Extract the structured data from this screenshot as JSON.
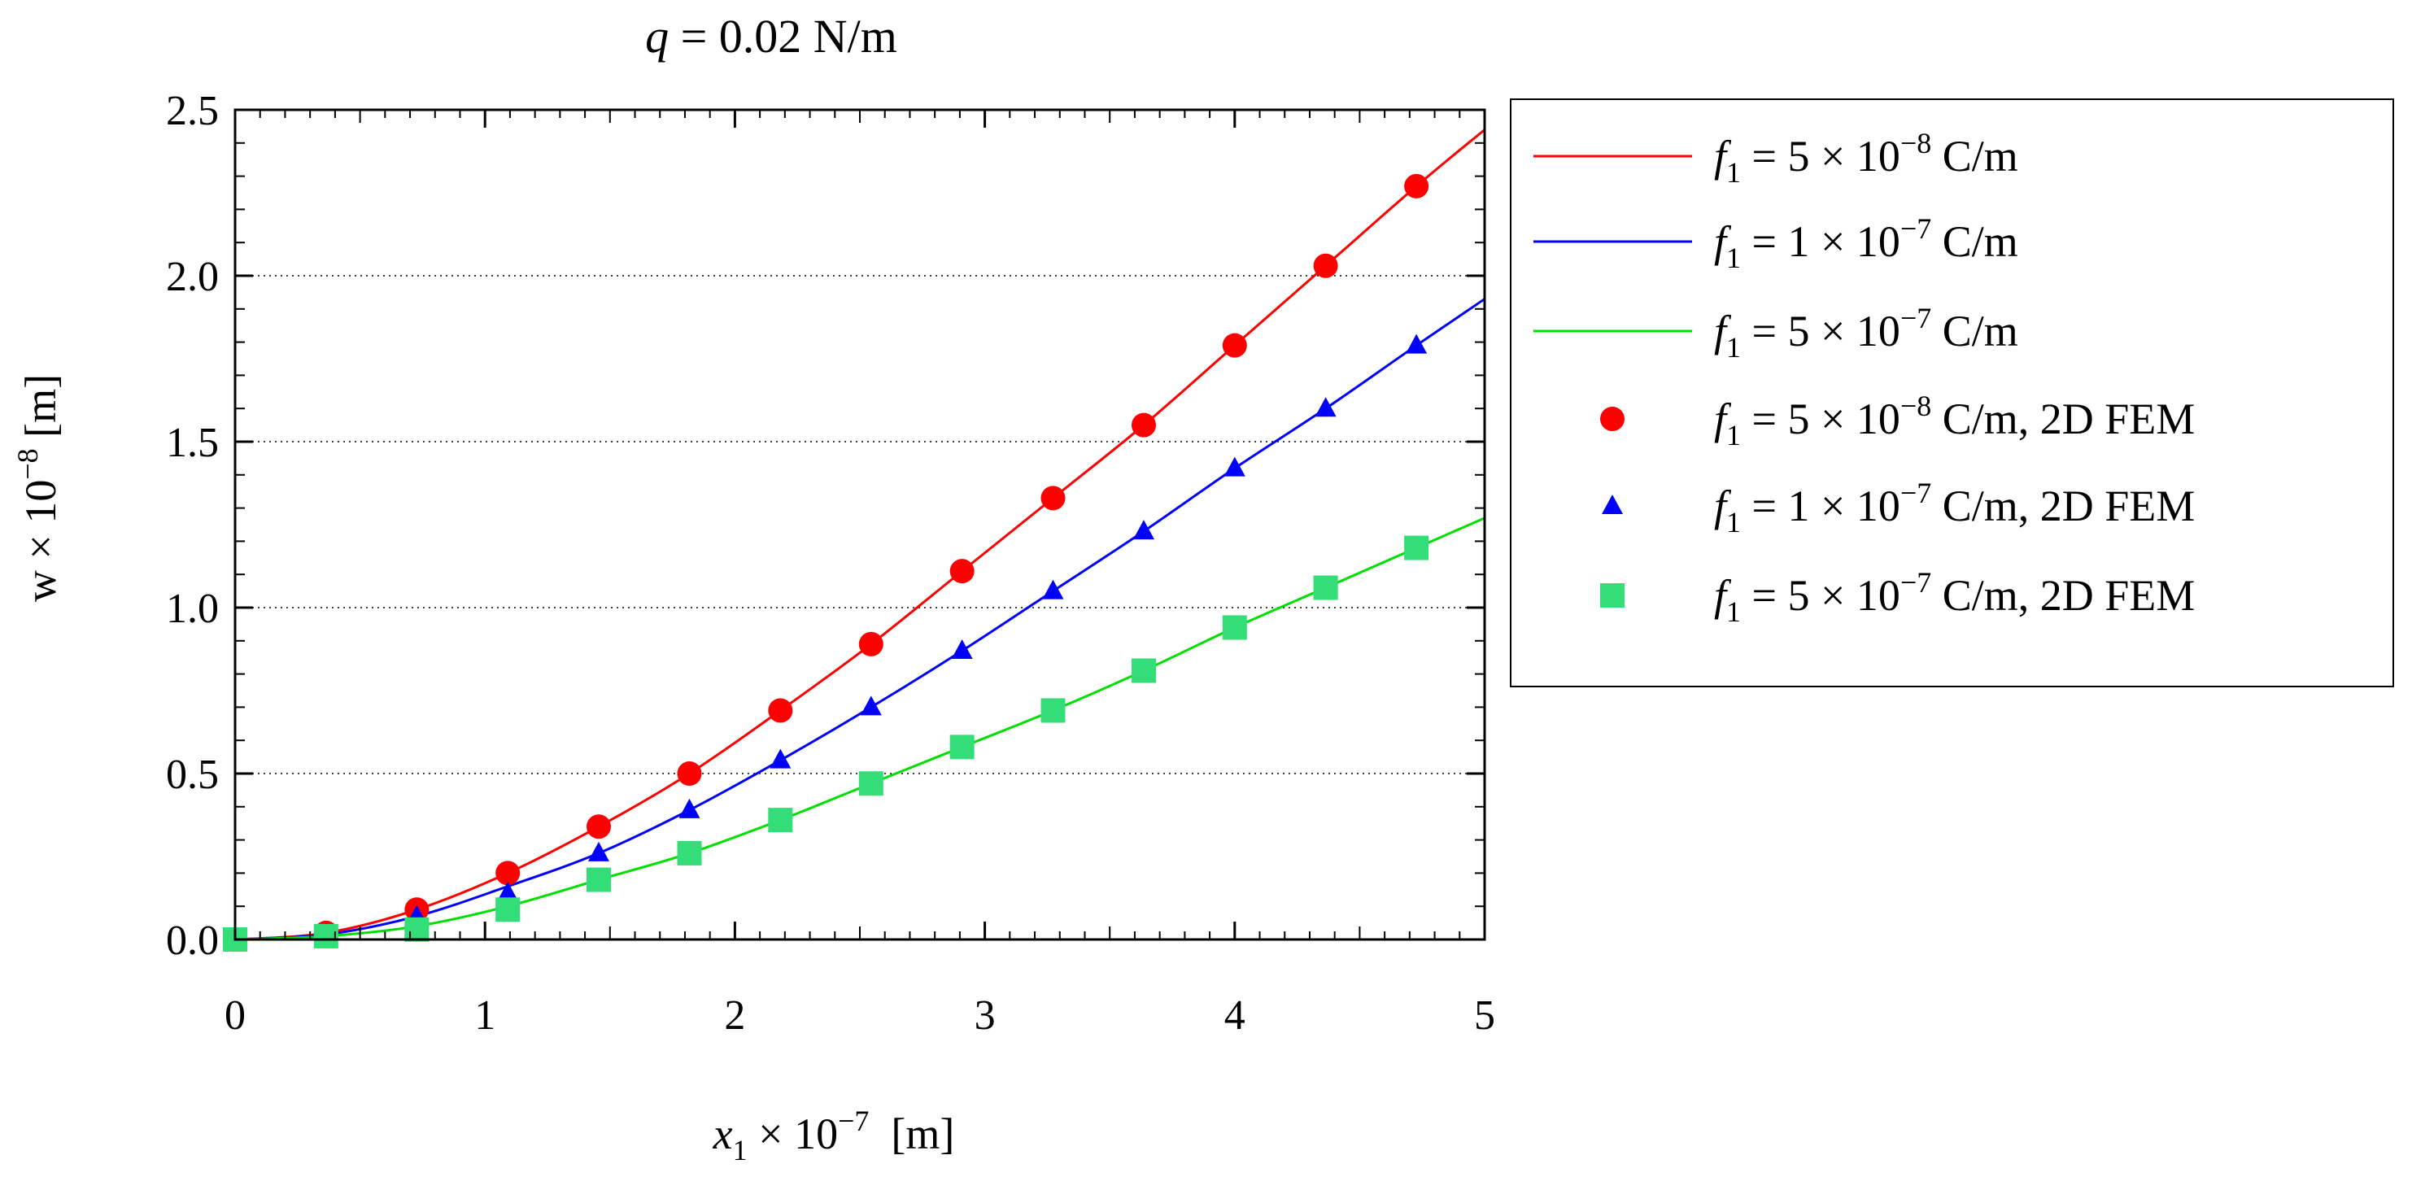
{
  "chart_data": {
    "type": "line",
    "title": {
      "var": "q",
      "rest": " = 0.02 N/m"
    },
    "xlabel": {
      "var": "x",
      "sub": "1",
      "mid": " × 10",
      "exp": "−7",
      "unit": "  [m]"
    },
    "ylabel": {
      "base": "w × 10",
      "exp": "−8",
      "unit": " [m]"
    },
    "xlim": [
      0,
      5
    ],
    "ylim": [
      0,
      2.5
    ],
    "x_ticks": [
      0,
      1,
      2,
      3,
      4,
      5
    ],
    "x_tick_labels": [
      "0",
      "1",
      "2",
      "3",
      "4",
      "5"
    ],
    "y_ticks": [
      0,
      0.5,
      1.0,
      1.5,
      2.0,
      2.5
    ],
    "y_tick_labels": [
      "0.0",
      "0.5",
      "1.0",
      "1.5",
      "2.0",
      "2.5"
    ],
    "grid": "horizontal dotted at y ticks",
    "legend_position": "outside-right",
    "x": [
      0,
      0.364,
      0.727,
      1.091,
      1.455,
      1.818,
      2.182,
      2.545,
      2.909,
      3.273,
      3.636,
      4.0,
      4.364,
      4.727
    ],
    "series": [
      {
        "name": "f1 = 5 × 10^−8 C/m",
        "kind": "line",
        "color": "#ff0000",
        "values": [
          0,
          0.02,
          0.09,
          0.2,
          0.34,
          0.5,
          0.69,
          0.89,
          1.11,
          1.33,
          1.55,
          1.79,
          2.03,
          2.27
        ],
        "end_value": 2.44,
        "legend": {
          "var": "f",
          "sub": "1",
          "mid": " = 5 × 10",
          "exp": "−8",
          "unit": " C/m"
        }
      },
      {
        "name": "f1 = 1 × 10^−7 C/m",
        "kind": "line",
        "color": "#0000ff",
        "values": [
          0,
          0.015,
          0.07,
          0.16,
          0.26,
          0.39,
          0.54,
          0.7,
          0.87,
          1.05,
          1.23,
          1.42,
          1.6,
          1.79
        ],
        "end_value": 1.93,
        "legend": {
          "var": "f",
          "sub": "1",
          "mid": " = 1 × 10",
          "exp": "−7",
          "unit": " C/m"
        }
      },
      {
        "name": "f1 = 5 × 10^−7 C/m",
        "kind": "line",
        "color": "#00e000",
        "values": [
          0,
          0.01,
          0.04,
          0.1,
          0.18,
          0.26,
          0.36,
          0.47,
          0.58,
          0.69,
          0.81,
          0.94,
          1.06,
          1.18
        ],
        "end_value": 1.27,
        "legend": {
          "var": "f",
          "sub": "1",
          "mid": " = 5 × 10",
          "exp": "−7",
          "unit": " C/m"
        }
      },
      {
        "name": "f1 = 5 × 10^−8 C/m, 2D FEM",
        "kind": "circle",
        "color": "#ff0000",
        "values": [
          0,
          0.02,
          0.09,
          0.2,
          0.34,
          0.5,
          0.69,
          0.89,
          1.11,
          1.33,
          1.55,
          1.79,
          2.03,
          2.27
        ],
        "legend": {
          "var": "f",
          "sub": "1",
          "mid": " = 5 × 10",
          "exp": "−8",
          "unit": " C/m, 2D FEM"
        }
      },
      {
        "name": "f1 = 1 × 10^−7 C/m, 2D FEM",
        "kind": "triangle",
        "color": "#0000ff",
        "values": [
          0,
          0.015,
          0.07,
          0.14,
          0.26,
          0.39,
          0.54,
          0.7,
          0.87,
          1.05,
          1.23,
          1.42,
          1.6,
          1.79
        ],
        "legend": {
          "var": "f",
          "sub": "1",
          "mid": " = 1 × 10",
          "exp": "−7",
          "unit": " C/m, 2D FEM"
        }
      },
      {
        "name": "f1 = 5 × 10^−7 C/m, 2D FEM",
        "kind": "square",
        "color": "#33dd77",
        "values": [
          0,
          0.01,
          0.03,
          0.09,
          0.18,
          0.26,
          0.36,
          0.47,
          0.58,
          0.69,
          0.81,
          0.94,
          1.06,
          1.18
        ],
        "legend": {
          "var": "f",
          "sub": "1",
          "mid": " = 5 × 10",
          "exp": "−7",
          "unit": " C/m,  2D FEM"
        }
      }
    ]
  }
}
